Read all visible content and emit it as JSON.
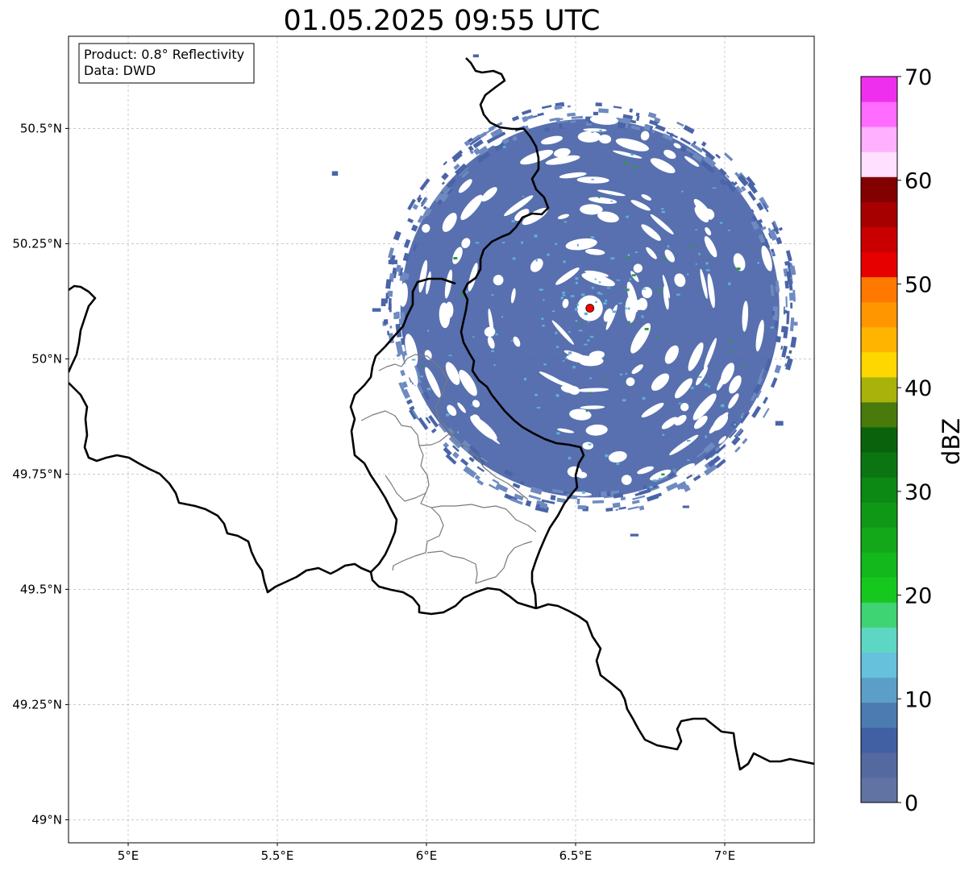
{
  "title": "01.05.2025 09:55 UTC",
  "info_box": {
    "product_line": "Product: 0.8° Reflectivity",
    "data_line": "Data: DWD"
  },
  "map_extent": {
    "lon_min": 4.8,
    "lon_max": 7.3,
    "lat_min": 48.95,
    "lat_max": 50.7
  },
  "lon_ticks": [
    {
      "value": 5.0,
      "label": "5°E"
    },
    {
      "value": 5.5,
      "label": "5.5°E"
    },
    {
      "value": 6.0,
      "label": "6°E"
    },
    {
      "value": 6.5,
      "label": "6.5°E"
    },
    {
      "value": 7.0,
      "label": "7°E"
    }
  ],
  "lat_ticks": [
    {
      "value": 50.5,
      "label": "50.5°N"
    },
    {
      "value": 50.25,
      "label": "50.25°N"
    },
    {
      "value": 50.0,
      "label": "50°N"
    },
    {
      "value": 49.75,
      "label": "49.75°N"
    },
    {
      "value": 49.5,
      "label": "49.5°N"
    },
    {
      "value": 49.25,
      "label": "49.25°N"
    },
    {
      "value": 49.0,
      "label": "49°N"
    }
  ],
  "radar_site": {
    "lon": 6.548,
    "lat": 50.11,
    "marker_color": "#ff0000"
  },
  "colorbar": {
    "label": "dBZ",
    "min": 0,
    "max": 70,
    "step": 2.5,
    "ticks": [
      {
        "value": 0,
        "label": "0"
      },
      {
        "value": 10,
        "label": "10"
      },
      {
        "value": 20,
        "label": "20"
      },
      {
        "value": 30,
        "label": "30"
      },
      {
        "value": 40,
        "label": "40"
      },
      {
        "value": 50,
        "label": "50"
      },
      {
        "value": 60,
        "label": "60"
      },
      {
        "value": 70,
        "label": "70"
      }
    ],
    "colors": [
      "#6173a3",
      "#5469a0",
      "#4160a4",
      "#4b7bb0",
      "#5b9ec8",
      "#66c1dc",
      "#5ed6c4",
      "#3ed474",
      "#16c81e",
      "#12b81c",
      "#12a81a",
      "#0f9816",
      "#0c8814",
      "#0b7611",
      "#0a620c",
      "#497a0c",
      "#a8b20a",
      "#ffd700",
      "#ffb400",
      "#ff9600",
      "#ff7800",
      "#e60000",
      "#c80000",
      "#a60000",
      "#820000",
      "#ffe0ff",
      "#ffb0ff",
      "#ff6cff",
      "#ee30ee"
    ]
  },
  "reflectivity_colors": {
    "main": "#4a64a8",
    "light": "#6e8ac0",
    "dark": "#3d56a0",
    "speck_light": "#5fb0d8",
    "speck_green": "#2a9a3a"
  }
}
